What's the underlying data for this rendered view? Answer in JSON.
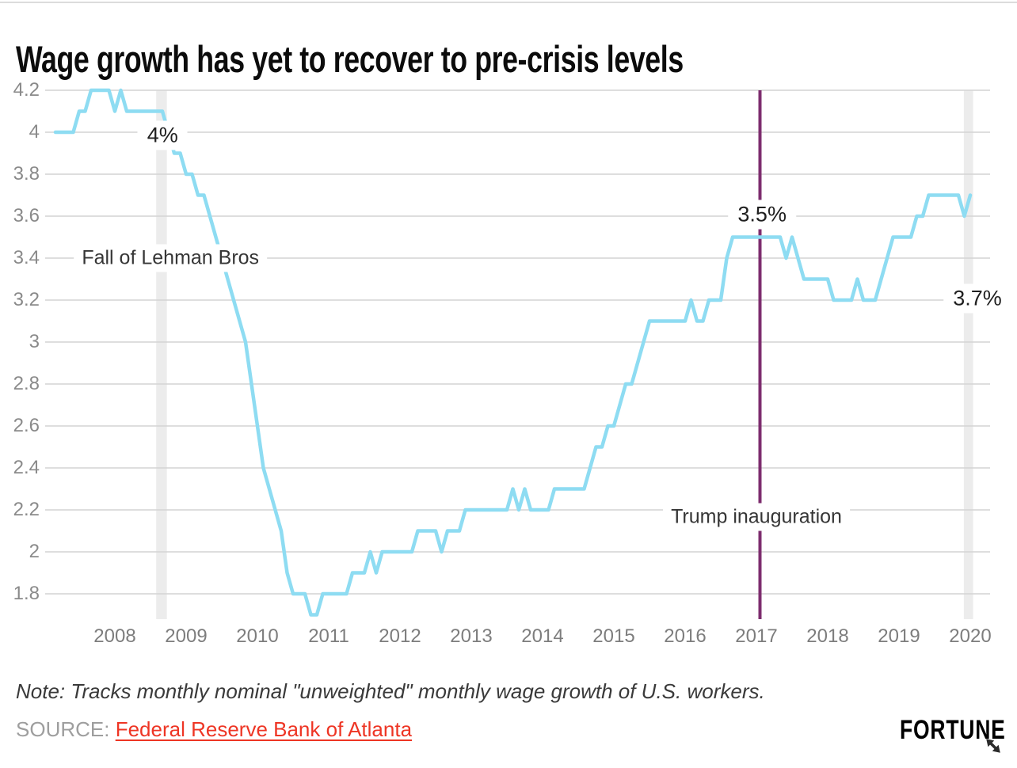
{
  "title": "Wage growth has yet to recover to pre-crisis levels",
  "chart_data": {
    "type": "line",
    "title": "Wage growth has yet to recover to pre-crisis levels",
    "xlabel": "",
    "ylabel": "",
    "grid": true,
    "ylim": [
      1.65,
      4.25
    ],
    "xlim_years": [
      2007.1,
      2020.3
    ],
    "line_color": "#8edcf2",
    "gridline_color": "#d4d4d4",
    "band_color": "#ececec",
    "y_ticks": [
      4.2,
      4.0,
      3.8,
      3.6,
      3.4,
      3.2,
      3.0,
      2.8,
      2.6,
      2.4,
      2.2,
      2.0,
      1.8
    ],
    "y_tick_labels": [
      "4.2",
      "4",
      "3.8",
      "3.6",
      "3.4",
      "3.2",
      "3",
      "2.8",
      "2.6",
      "2.4",
      "2.2",
      "2",
      "1.8"
    ],
    "x_ticks": [
      2008,
      2009,
      2010,
      2011,
      2012,
      2013,
      2014,
      2015,
      2016,
      2017,
      2018,
      2019,
      2020
    ],
    "x_tick_labels": [
      "2008",
      "2009",
      "2010",
      "2011",
      "2012",
      "2013",
      "2014",
      "2015",
      "2016",
      "2017",
      "2018",
      "2019",
      "2020"
    ],
    "series": [
      {
        "name": "Monthly nominal unweighted wage growth of U.S. workers (%)",
        "start": "2007-03",
        "frequency": "monthly",
        "values": [
          4.0,
          4.0,
          4.0,
          4.0,
          4.1,
          4.1,
          4.2,
          4.2,
          4.2,
          4.2,
          4.1,
          4.2,
          4.1,
          4.1,
          4.1,
          4.1,
          4.1,
          4.1,
          4.1,
          4.0,
          3.9,
          3.9,
          3.8,
          3.8,
          3.7,
          3.7,
          3.6,
          3.5,
          3.4,
          3.3,
          3.2,
          3.1,
          3.0,
          2.8,
          2.6,
          2.4,
          2.3,
          2.2,
          2.1,
          1.9,
          1.8,
          1.8,
          1.8,
          1.7,
          1.7,
          1.8,
          1.8,
          1.8,
          1.8,
          1.8,
          1.9,
          1.9,
          1.9,
          2.0,
          1.9,
          2.0,
          2.0,
          2.0,
          2.0,
          2.0,
          2.0,
          2.1,
          2.1,
          2.1,
          2.1,
          2.0,
          2.1,
          2.1,
          2.1,
          2.2,
          2.2,
          2.2,
          2.2,
          2.2,
          2.2,
          2.2,
          2.2,
          2.3,
          2.2,
          2.3,
          2.2,
          2.2,
          2.2,
          2.2,
          2.3,
          2.3,
          2.3,
          2.3,
          2.3,
          2.3,
          2.4,
          2.5,
          2.5,
          2.6,
          2.6,
          2.7,
          2.8,
          2.8,
          2.9,
          3.0,
          3.1,
          3.1,
          3.1,
          3.1,
          3.1,
          3.1,
          3.1,
          3.2,
          3.1,
          3.1,
          3.2,
          3.2,
          3.2,
          3.4,
          3.5,
          3.5,
          3.5,
          3.5,
          3.5,
          3.5,
          3.5,
          3.5,
          3.5,
          3.4,
          3.5,
          3.4,
          3.3,
          3.3,
          3.3,
          3.3,
          3.3,
          3.2,
          3.2,
          3.2,
          3.2,
          3.3,
          3.2,
          3.2,
          3.2,
          3.3,
          3.4,
          3.5,
          3.5,
          3.5,
          3.5,
          3.6,
          3.6,
          3.7,
          3.7,
          3.7,
          3.7,
          3.7,
          3.7,
          3.6,
          3.7
        ]
      }
    ],
    "event_line": {
      "x_year": 2017.05,
      "color": "#7d2d6e",
      "label": "Trump inauguration"
    },
    "bands": [
      {
        "x1_year": 2008.58,
        "x2_year": 2008.73,
        "name": "lehman-recession-band"
      },
      {
        "x1_year": 2019.91,
        "x2_year": 2020.04,
        "name": "latest-data-band"
      }
    ],
    "annotations": [
      {
        "id": "ann-4pct",
        "text": "4%",
        "x_year": 2008.67,
        "y_value": 4.0,
        "dy": 4,
        "style": "num"
      },
      {
        "id": "ann-lehman",
        "text": "Fall of Lehman Bros",
        "x_year": 2008.78,
        "y_value": 3.4,
        "dy": 0,
        "style": "text"
      },
      {
        "id": "ann-35pct",
        "text": "3.5%",
        "x_year": 2017.08,
        "y_value": 3.6,
        "dy": -2,
        "style": "num"
      },
      {
        "id": "ann-37pct",
        "text": "3.7%",
        "x_year": 2020.1,
        "y_value": 3.2,
        "dy": -2,
        "style": "num"
      },
      {
        "id": "ann-trump",
        "text": "Trump inauguration",
        "x_year": 2017.0,
        "y_value": 2.2,
        "dy": 9,
        "style": "text"
      }
    ]
  },
  "footer": {
    "note": "Note: Tracks monthly nominal \"unweighted\" monthly wage growth of U.S. workers.",
    "source_label": "SOURCE:",
    "source_link": "Federal Reserve Bank of Atlanta",
    "brand": "FORTUNE"
  }
}
